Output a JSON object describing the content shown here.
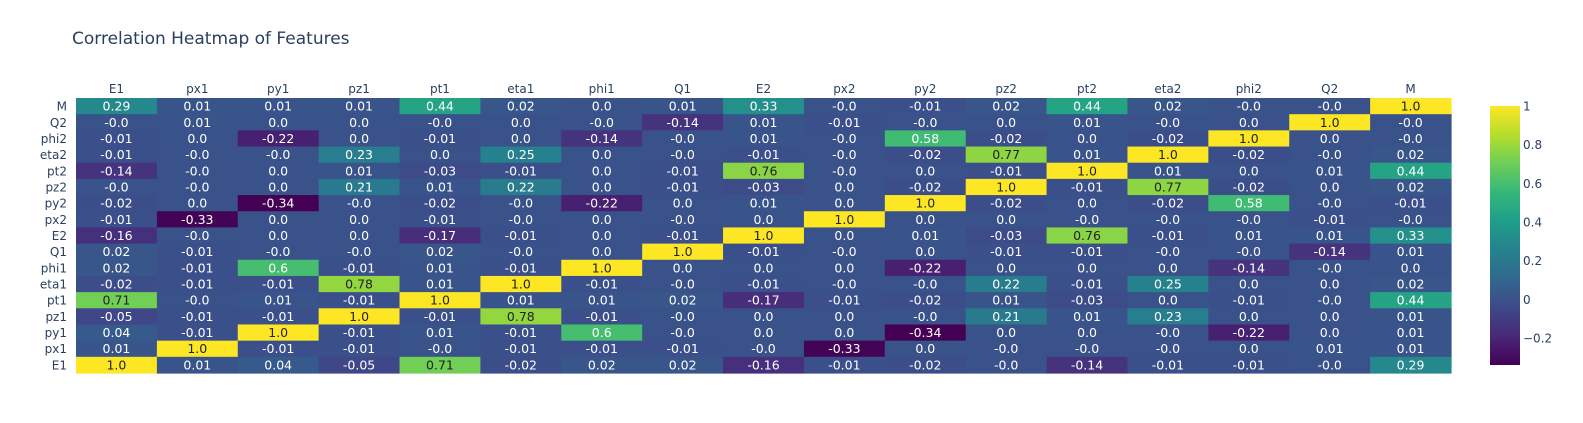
{
  "chart_data": {
    "type": "heatmap",
    "title": "Correlation Heatmap of Features",
    "x": [
      "E1",
      "px1",
      "py1",
      "pz1",
      "pt1",
      "eta1",
      "phi1",
      "Q1",
      "E2",
      "px2",
      "py2",
      "pz2",
      "pt2",
      "eta2",
      "phi2",
      "Q2",
      "M"
    ],
    "y": [
      "M",
      "Q2",
      "phi2",
      "eta2",
      "pt2",
      "pz2",
      "py2",
      "px2",
      "E2",
      "Q1",
      "phi1",
      "eta1",
      "pt1",
      "pz1",
      "py1",
      "px1",
      "E1"
    ],
    "z": [
      [
        "0.29",
        "0.01",
        "0.01",
        "0.01",
        "0.44",
        "0.02",
        "0.0",
        "0.01",
        "0.33",
        "-0.0",
        "-0.01",
        "0.02",
        "0.44",
        "0.02",
        "-0.0",
        "-0.0",
        "1.0"
      ],
      [
        "-0.0",
        "0.01",
        "0.0",
        "0.0",
        "-0.0",
        "0.0",
        "-0.0",
        "-0.14",
        "0.01",
        "-0.01",
        "-0.0",
        "0.0",
        "0.01",
        "-0.0",
        "0.0",
        "1.0",
        "-0.0"
      ],
      [
        "-0.01",
        "0.0",
        "-0.22",
        "0.0",
        "-0.01",
        "0.0",
        "-0.14",
        "-0.0",
        "0.01",
        "-0.0",
        "0.58",
        "-0.02",
        "0.0",
        "-0.02",
        "1.0",
        "0.0",
        "-0.0"
      ],
      [
        "-0.01",
        "-0.0",
        "-0.0",
        "0.23",
        "0.0",
        "0.25",
        "0.0",
        "-0.0",
        "-0.01",
        "-0.0",
        "-0.02",
        "0.77",
        "0.01",
        "1.0",
        "-0.02",
        "-0.0",
        "0.02"
      ],
      [
        "-0.14",
        "-0.0",
        "0.0",
        "0.01",
        "-0.03",
        "-0.01",
        "0.0",
        "-0.01",
        "0.76",
        "-0.0",
        "0.0",
        "-0.01",
        "1.0",
        "0.01",
        "0.0",
        "0.01",
        "0.44"
      ],
      [
        "-0.0",
        "-0.0",
        "0.0",
        "0.21",
        "0.01",
        "0.22",
        "0.0",
        "-0.01",
        "-0.03",
        "0.0",
        "-0.02",
        "1.0",
        "-0.01",
        "0.77",
        "-0.02",
        "0.0",
        "0.02"
      ],
      [
        "-0.02",
        "0.0",
        "-0.34",
        "-0.0",
        "-0.02",
        "-0.0",
        "-0.22",
        "0.0",
        "0.01",
        "0.0",
        "1.0",
        "-0.02",
        "0.0",
        "-0.02",
        "0.58",
        "-0.0",
        "-0.01"
      ],
      [
        "-0.01",
        "-0.33",
        "0.0",
        "0.0",
        "-0.01",
        "-0.0",
        "0.0",
        "-0.0",
        "0.0",
        "1.0",
        "0.0",
        "0.0",
        "-0.0",
        "-0.0",
        "-0.0",
        "-0.01",
        "-0.0"
      ],
      [
        "-0.16",
        "-0.0",
        "0.0",
        "0.0",
        "-0.17",
        "-0.01",
        "0.0",
        "-0.01",
        "1.0",
        "0.0",
        "0.01",
        "-0.03",
        "0.76",
        "-0.01",
        "0.01",
        "0.01",
        "0.33"
      ],
      [
        "0.02",
        "-0.01",
        "-0.0",
        "-0.0",
        "0.02",
        "-0.0",
        "0.0",
        "1.0",
        "-0.01",
        "-0.0",
        "0.0",
        "-0.01",
        "-0.01",
        "-0.0",
        "-0.0",
        "-0.14",
        "0.01"
      ],
      [
        "0.02",
        "-0.01",
        "0.6",
        "-0.01",
        "0.01",
        "-0.01",
        "1.0",
        "0.0",
        "0.0",
        "0.0",
        "-0.22",
        "0.0",
        "0.0",
        "0.0",
        "-0.14",
        "-0.0",
        "0.0"
      ],
      [
        "-0.02",
        "-0.01",
        "-0.01",
        "0.78",
        "0.01",
        "1.0",
        "-0.01",
        "-0.0",
        "-0.01",
        "-0.0",
        "-0.0",
        "0.22",
        "-0.01",
        "0.25",
        "0.0",
        "0.0",
        "0.02"
      ],
      [
        "0.71",
        "-0.0",
        "0.01",
        "-0.01",
        "1.0",
        "0.01",
        "0.01",
        "0.02",
        "-0.17",
        "-0.01",
        "-0.02",
        "0.01",
        "-0.03",
        "0.0",
        "-0.01",
        "-0.0",
        "0.44"
      ],
      [
        "-0.05",
        "-0.01",
        "-0.01",
        "1.0",
        "-0.01",
        "0.78",
        "-0.01",
        "-0.0",
        "0.0",
        "0.0",
        "-0.0",
        "0.21",
        "0.01",
        "0.23",
        "0.0",
        "0.0",
        "0.01"
      ],
      [
        "0.04",
        "-0.01",
        "1.0",
        "-0.01",
        "0.01",
        "-0.01",
        "0.6",
        "-0.0",
        "0.0",
        "0.0",
        "-0.34",
        "0.0",
        "0.0",
        "-0.0",
        "-0.22",
        "0.0",
        "0.01"
      ],
      [
        "0.01",
        "1.0",
        "-0.01",
        "-0.01",
        "-0.0",
        "-0.01",
        "-0.01",
        "-0.01",
        "-0.0",
        "-0.33",
        "0.0",
        "-0.0",
        "-0.0",
        "-0.0",
        "0.0",
        "0.01",
        "0.01"
      ],
      [
        "1.0",
        "0.01",
        "0.04",
        "-0.05",
        "0.71",
        "-0.02",
        "0.02",
        "0.02",
        "-0.16",
        "-0.01",
        "-0.02",
        "-0.0",
        "-0.14",
        "-0.01",
        "-0.01",
        "-0.0",
        "0.29"
      ]
    ],
    "colorscale": "viridis",
    "zmin": -0.34,
    "zmax": 1.0,
    "colorbar_ticks": [
      "1",
      "0.8",
      "0.6",
      "0.4",
      "0.2",
      "0",
      "−0.2"
    ],
    "colorbar_tick_values": [
      1,
      0.8,
      0.6,
      0.4,
      0.2,
      0,
      -0.2
    ],
    "xaxis_side": "top",
    "grid": false,
    "legend": "colorbar-right"
  }
}
